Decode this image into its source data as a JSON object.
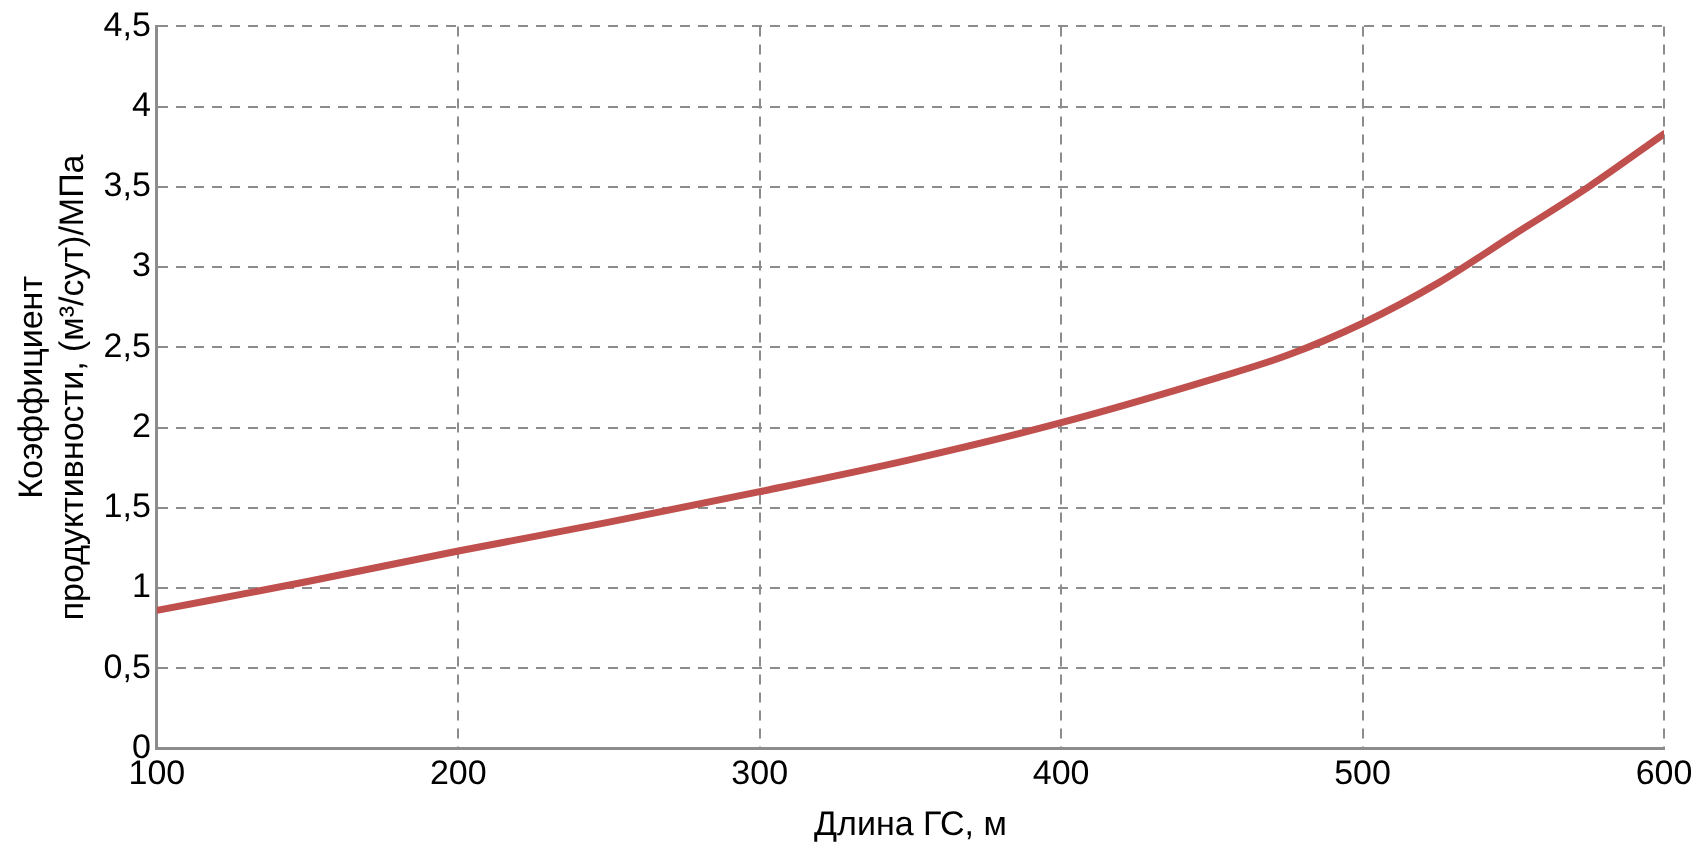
{
  "chart_data": {
    "type": "line",
    "xlabel": "Длина ГС, м",
    "ylabel": "Коэффициент\nпродуктивности, (м³/сут)/МПа",
    "x": [
      100,
      150,
      200,
      250,
      300,
      350,
      400,
      450,
      475,
      500,
      525,
      550,
      575,
      600
    ],
    "series": [
      {
        "color": "#c0504d",
        "values": [
          0.86,
          1.04,
          1.23,
          1.41,
          1.6,
          1.8,
          2.03,
          2.3,
          2.45,
          2.65,
          2.9,
          3.2,
          3.5,
          3.83
        ]
      }
    ],
    "xlim": [
      100,
      600
    ],
    "xticks": [
      100,
      200,
      300,
      400,
      500,
      600
    ],
    "ylim": [
      0,
      4.5
    ],
    "yticks": [
      0,
      {
        "value": 0.5,
        "label": "0,5"
      },
      1,
      {
        "value": 1.5,
        "label": "1,5"
      },
      2,
      {
        "value": 2.5,
        "label": "2,5"
      },
      3,
      {
        "value": 3.5,
        "label": "3,5"
      },
      4,
      {
        "value": 4.5,
        "label": "4,5"
      }
    ],
    "grid": true,
    "legend": false,
    "marker": "none",
    "line_style": "solid"
  }
}
